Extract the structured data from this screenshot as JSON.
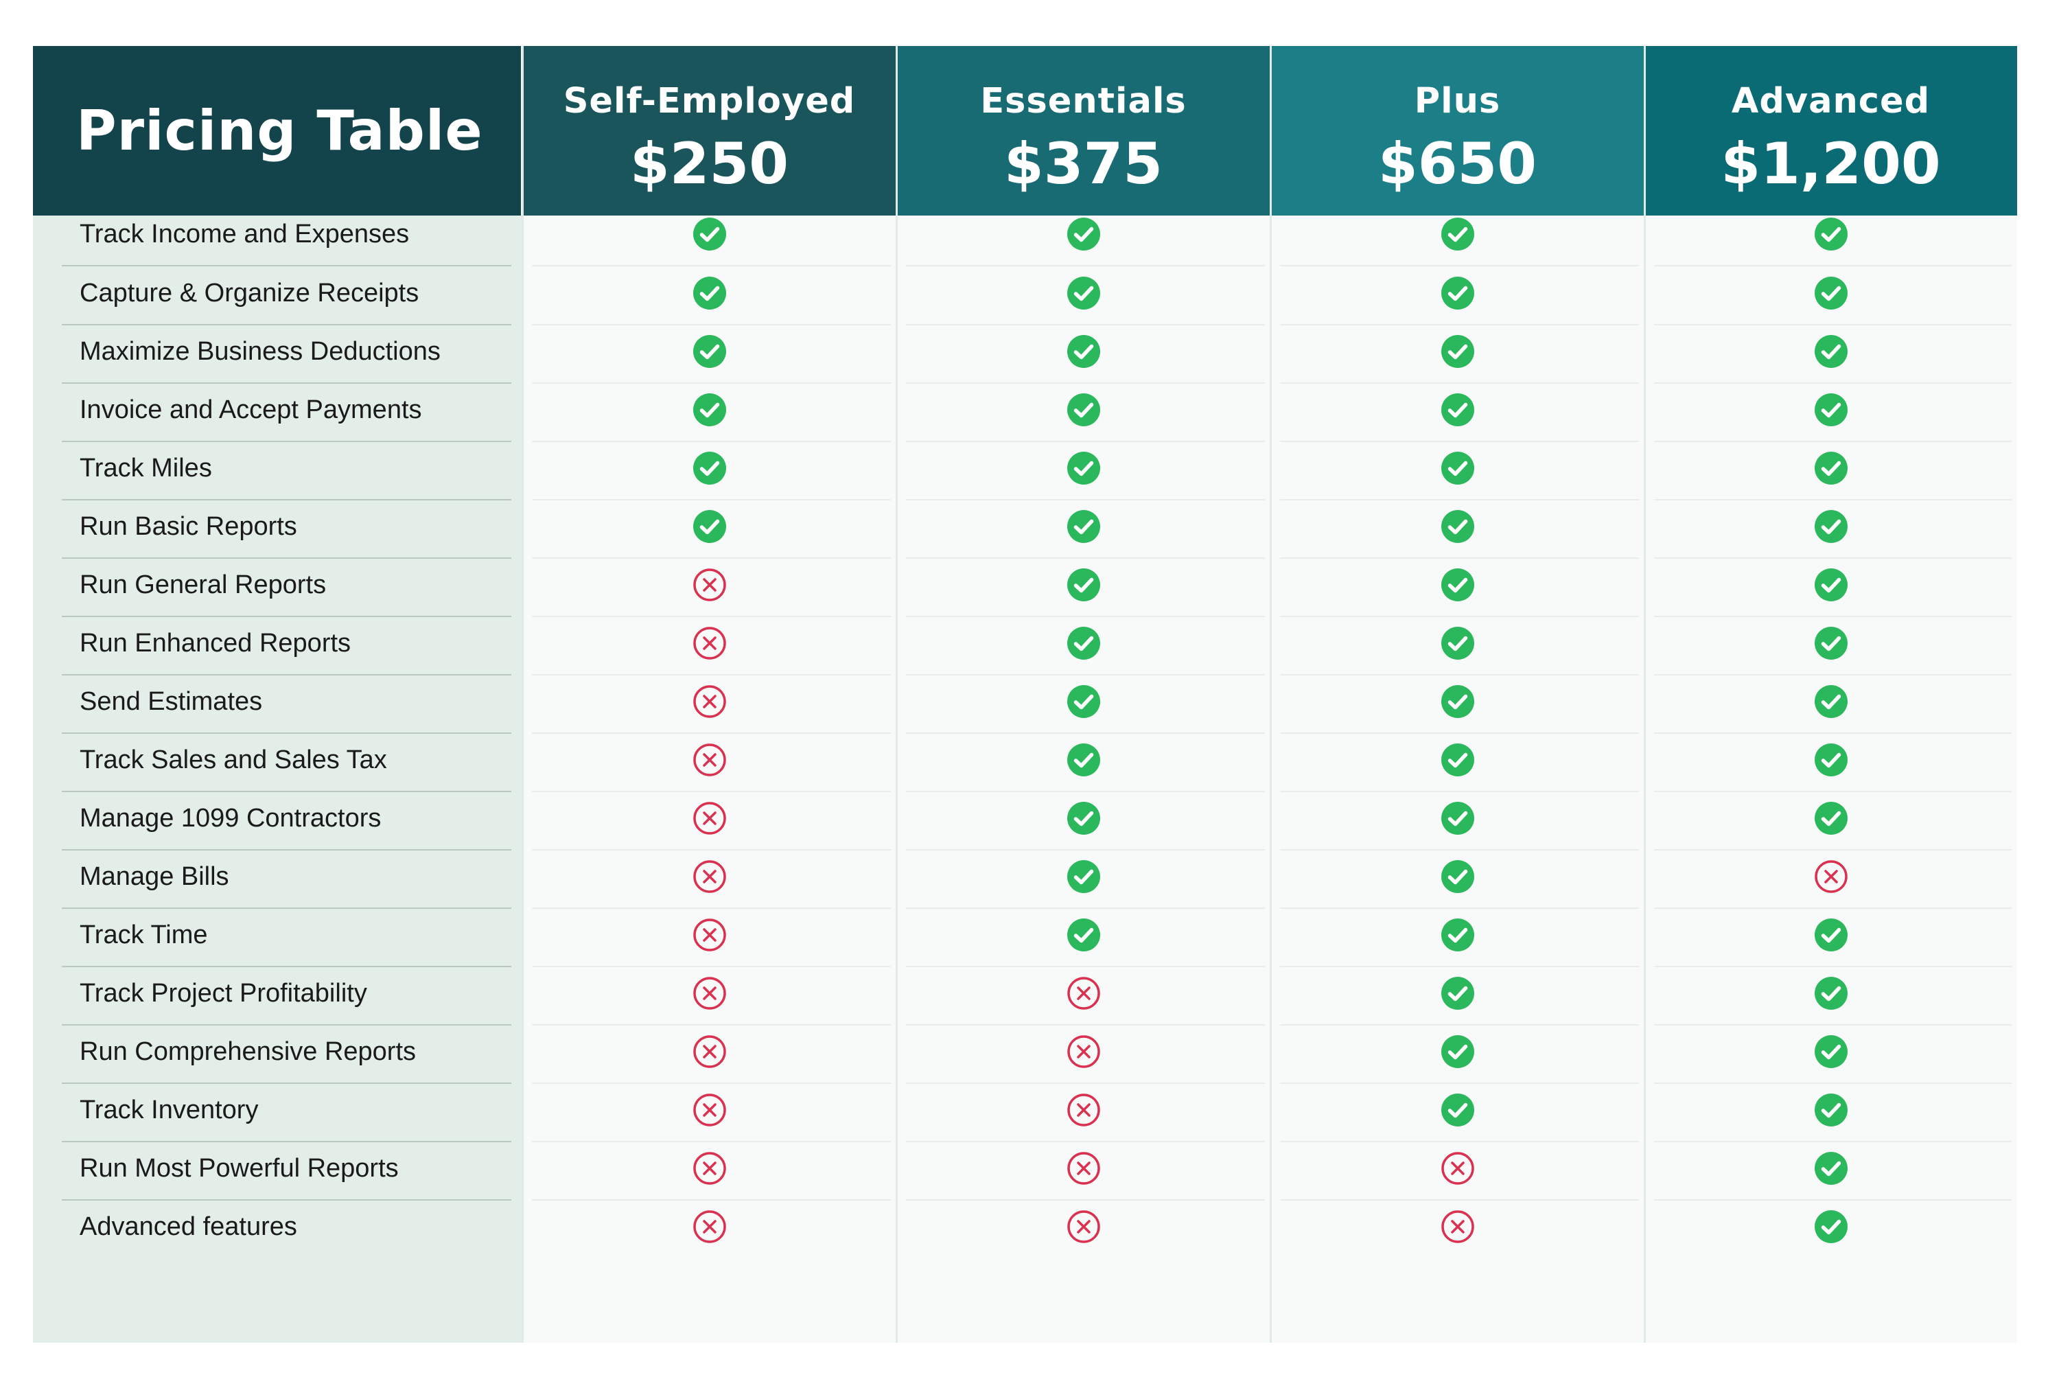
{
  "title": "Pricing Table",
  "plans": [
    {
      "name": "Self-Employed",
      "price": "$250",
      "color": "#1b555c"
    },
    {
      "name": "Essentials",
      "price": "$375",
      "color": "#186b72"
    },
    {
      "name": "Plus",
      "price": "$650",
      "color": "#1c7f87"
    },
    {
      "name": "Advanced",
      "price": "$1,200",
      "color": "#0b6b74"
    }
  ],
  "colors": {
    "title_bg": "#14444b",
    "feature_bg": "#e2eee7",
    "check": "#2bb85c",
    "cross": "#d9314f"
  },
  "features": [
    {
      "label": "Track Income and Expenses",
      "included": [
        true,
        true,
        true,
        true
      ]
    },
    {
      "label": "Capture & Organize Receipts",
      "included": [
        true,
        true,
        true,
        true
      ]
    },
    {
      "label": "Maximize Business Deductions",
      "included": [
        true,
        true,
        true,
        true
      ]
    },
    {
      "label": "Invoice and Accept Payments",
      "included": [
        true,
        true,
        true,
        true
      ]
    },
    {
      "label": "Track Miles",
      "included": [
        true,
        true,
        true,
        true
      ]
    },
    {
      "label": "Run Basic Reports",
      "included": [
        true,
        true,
        true,
        true
      ]
    },
    {
      "label": "Run General Reports",
      "included": [
        false,
        true,
        true,
        true
      ]
    },
    {
      "label": "Run Enhanced Reports",
      "included": [
        false,
        true,
        true,
        true
      ]
    },
    {
      "label": "Send Estimates",
      "included": [
        false,
        true,
        true,
        true
      ]
    },
    {
      "label": "Track Sales and Sales Tax",
      "included": [
        false,
        true,
        true,
        true
      ]
    },
    {
      "label": "Manage 1099 Contractors",
      "included": [
        false,
        true,
        true,
        true
      ]
    },
    {
      "label": "Manage Bills",
      "included": [
        false,
        true,
        true,
        false
      ]
    },
    {
      "label": "Track Time",
      "included": [
        false,
        true,
        true,
        true
      ]
    },
    {
      "label": "Track Project Profitability",
      "included": [
        false,
        false,
        true,
        true
      ]
    },
    {
      "label": "Run Comprehensive Reports",
      "included": [
        false,
        false,
        true,
        true
      ]
    },
    {
      "label": "Track Inventory",
      "included": [
        false,
        false,
        true,
        true
      ]
    },
    {
      "label": "Run Most Powerful Reports",
      "included": [
        false,
        false,
        false,
        true
      ]
    },
    {
      "label": "Advanced features",
      "included": [
        false,
        false,
        false,
        true
      ]
    }
  ]
}
